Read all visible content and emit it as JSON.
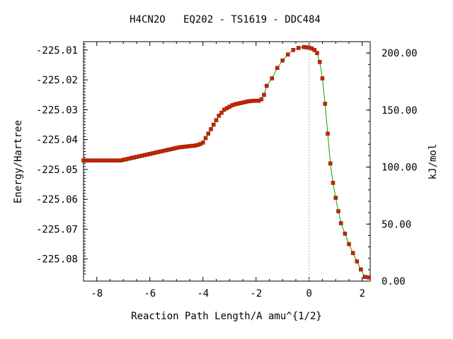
{
  "chart_data": {
    "type": "line",
    "title": "H4CN2O   EQ202 - TS1619 - DDC484",
    "xlabel": "Reaction Path Length/A amu^{1/2}",
    "ylabel": "Energy/Hartree",
    "y2label": "kJ/mol",
    "xlim": [
      -8.5,
      2.3
    ],
    "ylim": [
      -225.0874,
      -225.0072
    ],
    "y2lim": [
      0.0,
      210.0
    ],
    "x_ticks": [
      -8,
      -6,
      -4,
      -2,
      0,
      2
    ],
    "y_ticks": [
      -225.01,
      -225.02,
      -225.03,
      -225.04,
      -225.05,
      -225.06,
      -225.07,
      -225.08
    ],
    "y2_ticks": [
      "200.00",
      "150.00",
      "100.00",
      "50.00",
      "0.00"
    ],
    "x_tick_labels": [
      "-8",
      "-6",
      "-4",
      "-2",
      "0",
      "2"
    ],
    "y_tick_labels": [
      "-225.01",
      "-225.02",
      "-225.03",
      "-225.04",
      "-225.05",
      "-225.06",
      "-225.07",
      "-225.08"
    ],
    "vertical_reference_line_x": 0,
    "grid": false,
    "colors": {
      "line": "#00aa00",
      "marker_fill": "#cc2200",
      "marker_edge": "#882200",
      "refline": "#aaaaaa"
    },
    "series": [
      {
        "x": [
          -8.5,
          -8.4,
          -8.3,
          -8.2,
          -8.1,
          -8.0,
          -7.9,
          -7.8,
          -7.7,
          -7.6,
          -7.5,
          -7.4,
          -7.3,
          -7.2,
          -7.1,
          -7.0,
          -6.9,
          -6.8,
          -6.7,
          -6.6,
          -6.5,
          -6.4,
          -6.3,
          -6.2,
          -6.1,
          -6.0,
          -5.9,
          -5.8,
          -5.7,
          -5.6,
          -5.5,
          -5.4,
          -5.3,
          -5.2,
          -5.1,
          -5.0,
          -4.9,
          -4.8,
          -4.7,
          -4.6,
          -4.5,
          -4.4,
          -4.3,
          -4.2,
          -4.1,
          -4.0,
          -3.9,
          -3.8,
          -3.7,
          -3.6,
          -3.5,
          -3.4,
          -3.3,
          -3.2,
          -3.1,
          -3.0,
          -2.9,
          -2.8,
          -2.7,
          -2.6,
          -2.5,
          -2.4,
          -2.3,
          -2.2,
          -2.1,
          -2.0,
          -1.9,
          -1.8,
          -1.7,
          -1.6,
          -1.4,
          -1.2,
          -1.0,
          -0.8,
          -0.6,
          -0.4,
          -0.2,
          -0.1,
          0.0,
          0.1,
          0.2,
          0.3,
          0.4,
          0.5,
          0.6,
          0.7,
          0.8,
          0.9,
          1.0,
          1.1,
          1.2,
          1.35,
          1.5,
          1.65,
          1.8,
          1.95,
          2.1,
          2.25
        ],
        "y": [
          -225.047,
          -225.047,
          -225.047,
          -225.047,
          -225.047,
          -225.047,
          -225.047,
          -225.047,
          -225.047,
          -225.047,
          -225.047,
          -225.047,
          -225.047,
          -225.047,
          -225.047,
          -225.0468,
          -225.0466,
          -225.0464,
          -225.0462,
          -225.046,
          -225.0458,
          -225.0456,
          -225.0454,
          -225.0452,
          -225.045,
          -225.0448,
          -225.0446,
          -225.0444,
          -225.0442,
          -225.044,
          -225.0438,
          -225.0436,
          -225.0434,
          -225.0432,
          -225.043,
          -225.0428,
          -225.0426,
          -225.0425,
          -225.0424,
          -225.0423,
          -225.0422,
          -225.0421,
          -225.042,
          -225.0418,
          -225.0415,
          -225.041,
          -225.0395,
          -225.038,
          -225.0365,
          -225.035,
          -225.0335,
          -225.032,
          -225.031,
          -225.03,
          -225.0295,
          -225.029,
          -225.0285,
          -225.0282,
          -225.028,
          -225.0278,
          -225.0276,
          -225.0274,
          -225.0272,
          -225.0271,
          -225.027,
          -225.027,
          -225.027,
          -225.0265,
          -225.025,
          -225.022,
          -225.0195,
          -225.016,
          -225.0135,
          -225.0115,
          -225.01,
          -225.0093,
          -225.009,
          -225.0091,
          -225.0092,
          -225.0095,
          -225.01,
          -225.011,
          -225.014,
          -225.0195,
          -225.028,
          -225.038,
          -225.048,
          -225.0545,
          -225.0595,
          -225.064,
          -225.068,
          -225.0715,
          -225.075,
          -225.078,
          -225.0808,
          -225.0835,
          -225.086,
          -225.0862
        ]
      }
    ]
  }
}
